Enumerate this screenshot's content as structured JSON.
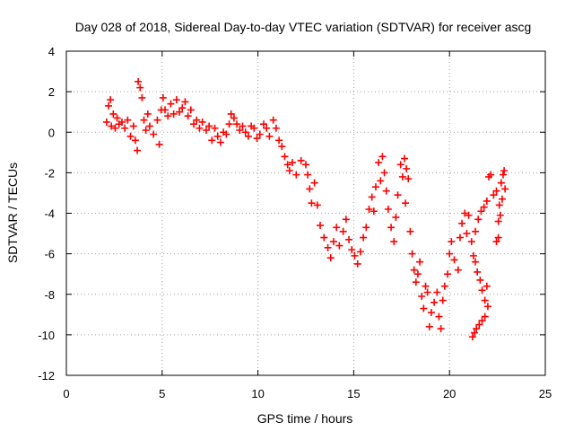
{
  "chart_data": {
    "type": "scatter",
    "title": "Day 028 of 2018, Sidereal Day-to-day VTEC variation (SDTVAR) for receiver ascg",
    "xlabel": "GPS time / hours",
    "ylabel": "SDTVAR / TECUs",
    "xlim": [
      0,
      25
    ],
    "ylim": [
      -12,
      4
    ],
    "xticks": [
      0,
      5,
      10,
      15,
      20,
      25
    ],
    "yticks": [
      -12,
      -10,
      -8,
      -6,
      -4,
      -2,
      0,
      2,
      4
    ],
    "grid": true,
    "marker": "plus",
    "color": "#ff0000",
    "series": [
      {
        "values": [
          [
            2.1,
            0.5
          ],
          [
            2.2,
            1.3
          ],
          [
            2.3,
            1.6
          ],
          [
            2.35,
            0.3
          ],
          [
            2.45,
            0.9
          ],
          [
            2.55,
            0.2
          ],
          [
            2.65,
            0.7
          ],
          [
            2.75,
            0.4
          ],
          [
            2.9,
            0.5
          ],
          [
            3.05,
            0.2
          ],
          [
            3.2,
            0.6
          ],
          [
            3.35,
            -0.2
          ],
          [
            3.5,
            0.3
          ],
          [
            3.6,
            -0.4
          ],
          [
            3.7,
            -0.9
          ],
          [
            3.75,
            2.5
          ],
          [
            3.85,
            2.2
          ],
          [
            3.95,
            1.7
          ],
          [
            4.05,
            0.6
          ],
          [
            4.15,
            0.1
          ],
          [
            4.25,
            0.9
          ],
          [
            4.35,
            0.3
          ],
          [
            4.55,
            -0.1
          ],
          [
            4.75,
            0.6
          ],
          [
            4.85,
            -0.6
          ],
          [
            4.95,
            1.1
          ],
          [
            5.05,
            1.7
          ],
          [
            5.15,
            1.1
          ],
          [
            5.3,
            0.8
          ],
          [
            5.45,
            1.4
          ],
          [
            5.6,
            0.9
          ],
          [
            5.75,
            1.6
          ],
          [
            5.9,
            1.0
          ],
          [
            6.05,
            1.2
          ],
          [
            6.2,
            1.5
          ],
          [
            6.35,
            0.8
          ],
          [
            6.5,
            1.1
          ],
          [
            6.65,
            0.4
          ],
          [
            6.8,
            0.6
          ],
          [
            6.95,
            0.2
          ],
          [
            7.1,
            0.5
          ],
          [
            7.3,
            0.1
          ],
          [
            7.45,
            0.3
          ],
          [
            7.6,
            -0.4
          ],
          [
            7.75,
            0.2
          ],
          [
            7.9,
            -0.2
          ],
          [
            8.05,
            -0.5
          ],
          [
            8.2,
            0.0
          ],
          [
            8.35,
            -0.1
          ],
          [
            8.5,
            0.4
          ],
          [
            8.6,
            0.9
          ],
          [
            8.75,
            0.7
          ],
          [
            8.9,
            0.4
          ],
          [
            9.05,
            0.1
          ],
          [
            9.2,
            0.3
          ],
          [
            9.35,
            0.0
          ],
          [
            9.5,
            -0.2
          ],
          [
            9.65,
            0.3
          ],
          [
            9.8,
            0.2
          ],
          [
            9.95,
            -0.3
          ],
          [
            10.1,
            -0.1
          ],
          [
            10.3,
            0.4
          ],
          [
            10.45,
            0.2
          ],
          [
            10.6,
            -0.2
          ],
          [
            10.8,
            0.6
          ],
          [
            10.95,
            0.2
          ],
          [
            11.1,
            -0.4
          ],
          [
            11.25,
            -0.7
          ],
          [
            11.4,
            -1.2
          ],
          [
            11.55,
            -1.6
          ],
          [
            11.65,
            -1.9
          ],
          [
            11.8,
            -1.5
          ],
          [
            12.0,
            -2.1
          ],
          [
            12.25,
            -1.4
          ],
          [
            12.5,
            -1.6
          ],
          [
            12.6,
            -2.1
          ],
          [
            12.7,
            -2.8
          ],
          [
            12.8,
            -3.5
          ],
          [
            12.95,
            -2.5
          ],
          [
            13.1,
            -3.6
          ],
          [
            13.25,
            -4.6
          ],
          [
            13.45,
            -5.2
          ],
          [
            13.65,
            -5.7
          ],
          [
            13.8,
            -6.2
          ],
          [
            13.95,
            -5.4
          ],
          [
            14.1,
            -4.7
          ],
          [
            14.25,
            -5.6
          ],
          [
            14.45,
            -4.9
          ],
          [
            14.6,
            -4.3
          ],
          [
            14.75,
            -5.3
          ],
          [
            14.9,
            -5.8
          ],
          [
            15.05,
            -6.1
          ],
          [
            15.2,
            -6.5
          ],
          [
            15.35,
            -5.9
          ],
          [
            15.5,
            -5.2
          ],
          [
            15.65,
            -4.7
          ],
          [
            15.8,
            -3.8
          ],
          [
            15.95,
            -3.2
          ],
          [
            16.05,
            -3.9
          ],
          [
            16.15,
            -2.7
          ],
          [
            16.3,
            -1.5
          ],
          [
            16.4,
            -2.4
          ],
          [
            16.5,
            -1.2
          ],
          [
            16.6,
            -2.0
          ],
          [
            16.7,
            -2.9
          ],
          [
            16.8,
            -3.8
          ],
          [
            16.95,
            -4.7
          ],
          [
            17.1,
            -5.4
          ],
          [
            17.2,
            -4.2
          ],
          [
            17.3,
            -3.1
          ],
          [
            17.45,
            -1.6
          ],
          [
            17.55,
            -2.2
          ],
          [
            17.65,
            -1.3
          ],
          [
            17.75,
            -1.8
          ],
          [
            17.85,
            -2.3
          ],
          [
            17.7,
            -3.5
          ],
          [
            17.95,
            -4.9
          ],
          [
            18.05,
            -6.0
          ],
          [
            18.15,
            -6.8
          ],
          [
            18.25,
            -7.4
          ],
          [
            18.35,
            -7.0
          ],
          [
            18.45,
            -6.4
          ],
          [
            18.55,
            -8.1
          ],
          [
            18.65,
            -8.7
          ],
          [
            18.75,
            -7.6
          ],
          [
            18.85,
            -7.9
          ],
          [
            18.95,
            -9.6
          ],
          [
            19.05,
            -8.9
          ],
          [
            19.2,
            -8.4
          ],
          [
            19.35,
            -7.9
          ],
          [
            19.45,
            -9.1
          ],
          [
            19.55,
            -9.7
          ],
          [
            19.65,
            -8.3
          ],
          [
            19.75,
            -7.6
          ],
          [
            19.9,
            -7.0
          ],
          [
            20.0,
            -6.0
          ],
          [
            20.1,
            -5.4
          ],
          [
            20.25,
            -6.3
          ],
          [
            20.45,
            -6.8
          ],
          [
            20.55,
            -5.2
          ],
          [
            20.65,
            -4.5
          ],
          [
            20.8,
            -4.0
          ],
          [
            20.9,
            -5.0
          ],
          [
            21.0,
            -4.1
          ],
          [
            21.15,
            -5.4
          ],
          [
            21.25,
            -6.1
          ],
          [
            21.35,
            -6.4
          ],
          [
            21.45,
            -6.9
          ],
          [
            21.6,
            -7.3
          ],
          [
            21.7,
            -7.8
          ],
          [
            21.85,
            -8.3
          ],
          [
            21.95,
            -7.6
          ],
          [
            22.0,
            -8.6
          ],
          [
            21.85,
            -9.1
          ],
          [
            21.7,
            -9.3
          ],
          [
            21.55,
            -9.5
          ],
          [
            21.4,
            -9.7
          ],
          [
            21.3,
            -9.9
          ],
          [
            21.2,
            -10.1
          ],
          [
            21.35,
            -4.9
          ],
          [
            21.5,
            -4.3
          ],
          [
            21.65,
            -3.9
          ],
          [
            21.8,
            -3.7
          ],
          [
            21.95,
            -3.4
          ],
          [
            22.05,
            -2.2
          ],
          [
            22.15,
            -2.1
          ],
          [
            22.3,
            -3.1
          ],
          [
            22.45,
            -2.9
          ],
          [
            22.55,
            -4.4
          ],
          [
            22.6,
            -3.6
          ],
          [
            22.7,
            -2.5
          ],
          [
            22.8,
            -2.1
          ],
          [
            22.85,
            -1.9
          ],
          [
            22.9,
            -2.8
          ],
          [
            22.75,
            -3.3
          ],
          [
            22.65,
            -4.1
          ],
          [
            22.55,
            -5.2
          ],
          [
            22.45,
            -5.4
          ]
        ]
      }
    ]
  }
}
